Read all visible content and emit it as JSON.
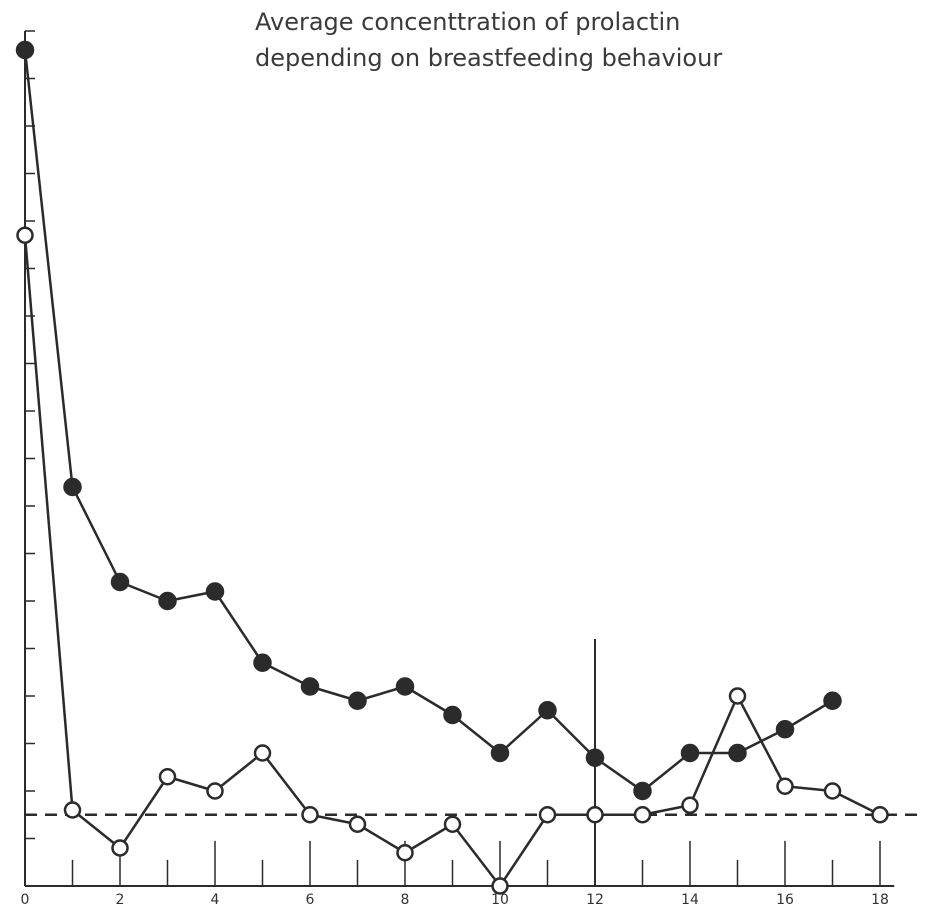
{
  "chart_data": {
    "type": "line",
    "title": [
      "Average concenttration of prolactin",
      "depending on breastfeeding behaviour"
    ],
    "xlabel": "",
    "ylabel": "",
    "xlim": [
      0,
      18.3
    ],
    "ylim": [
      0,
      18
    ],
    "x_ticks": [
      0,
      2,
      4,
      6,
      8,
      10,
      12,
      14,
      16,
      18
    ],
    "grid": false,
    "legend": "none",
    "series": [
      {
        "marker": "filled",
        "color": "#2b2b2b",
        "x": [
          0,
          1,
          2,
          3,
          4,
          5,
          6,
          7,
          8,
          9,
          10,
          11,
          12,
          13,
          14,
          15,
          16,
          17
        ],
        "y": [
          17.6,
          8.4,
          6.4,
          6.0,
          6.2,
          4.7,
          4.2,
          3.9,
          4.2,
          3.6,
          2.8,
          3.7,
          2.7,
          2.0,
          2.8,
          2.8,
          3.3,
          3.9
        ]
      },
      {
        "marker": "open",
        "color": "#2b2b2b",
        "x": [
          0,
          1,
          2,
          3,
          4,
          5,
          6,
          7,
          8,
          9,
          10,
          11,
          12,
          13,
          14,
          15,
          16,
          17,
          18
        ],
        "y": [
          13.7,
          1.6,
          0.8,
          2.3,
          2.0,
          2.8,
          1.5,
          1.3,
          0.7,
          1.3,
          0.0,
          1.5,
          1.5,
          1.5,
          1.7,
          4.0,
          2.1,
          2.0,
          1.5
        ]
      }
    ],
    "reference_line": {
      "y": 1.5,
      "style": "dashed"
    },
    "marker_line": {
      "x": 12,
      "y_top": 5.2
    }
  }
}
